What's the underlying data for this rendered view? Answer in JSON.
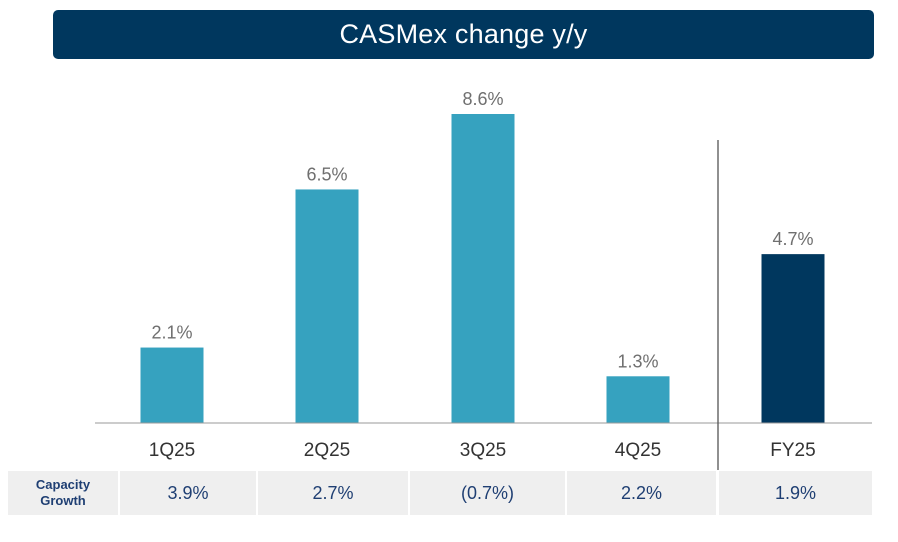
{
  "title": "CASMex change y/y",
  "chart_data": {
    "type": "bar",
    "title": "CASMex change y/y",
    "categories": [
      "1Q25",
      "2Q25",
      "3Q25",
      "4Q25",
      "FY25"
    ],
    "values": [
      2.1,
      6.5,
      8.6,
      1.3,
      4.7
    ],
    "value_labels": [
      "2.1%",
      "6.5%",
      "8.6%",
      "1.3%",
      "4.7%"
    ],
    "colors": [
      "#36a2bf",
      "#36a2bf",
      "#36a2bf",
      "#36a2bf",
      "#00375e"
    ],
    "ylim": [
      0,
      8.6
    ],
    "grid": false,
    "legend": "none"
  },
  "capacity_table": {
    "label_line1": "Capacity",
    "label_line2": "Growth",
    "values": [
      "3.9%",
      "2.7%",
      "(0.7%)",
      "2.2%",
      "1.9%"
    ]
  }
}
